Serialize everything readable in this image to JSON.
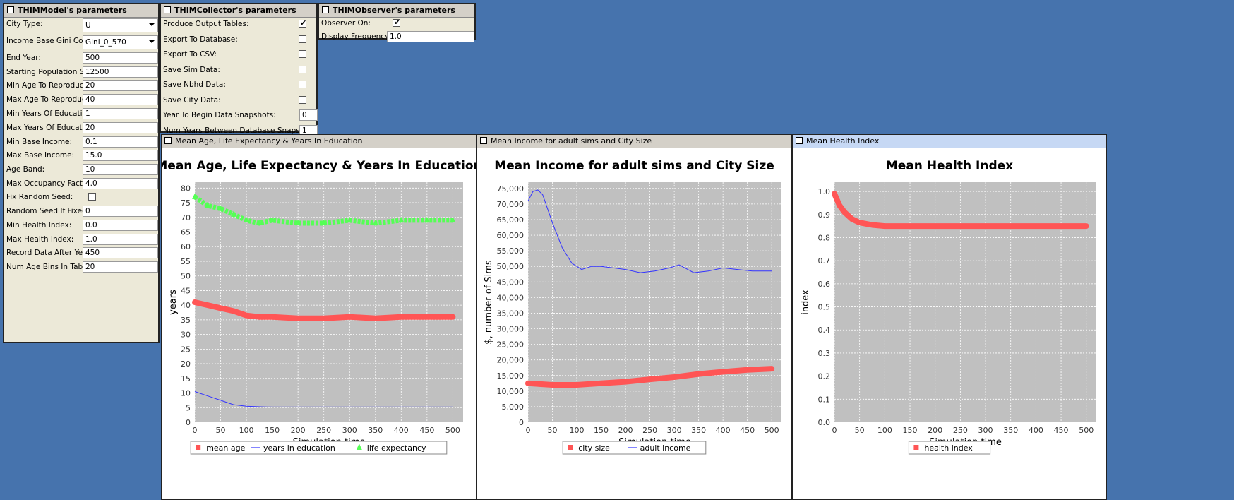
{
  "model_panel": {
    "title": "THIMModel's parameters",
    "rows": [
      {
        "label": "City Type:",
        "kind": "combo",
        "value": "U"
      },
      {
        "label": "Income Base Gini Coeff:",
        "kind": "combo",
        "value": "Gini_0_570"
      },
      {
        "label": "End Year:",
        "kind": "text",
        "value": "500"
      },
      {
        "label": "Starting Population Size:",
        "kind": "text",
        "value": "12500"
      },
      {
        "label": "Min Age To Reproduce:",
        "kind": "text",
        "value": "20"
      },
      {
        "label": "Max Age To Reproduce:",
        "kind": "text",
        "value": "40"
      },
      {
        "label": "Min Years Of Education:",
        "kind": "text",
        "value": "1"
      },
      {
        "label": "Max Years Of Education:",
        "kind": "text",
        "value": "20"
      },
      {
        "label": "Min Base Income:",
        "kind": "text",
        "value": "0.1"
      },
      {
        "label": "Max Base Income:",
        "kind": "text",
        "value": "15.0"
      },
      {
        "label": "Age Band:",
        "kind": "text",
        "value": "10"
      },
      {
        "label": "Max Occupancy Factor:",
        "kind": "text",
        "value": "4.0"
      },
      {
        "label": "Fix Random Seed:",
        "kind": "check",
        "checked": false
      },
      {
        "label": "Random Seed If Fixed:",
        "kind": "text",
        "value": "0"
      },
      {
        "label": "Min Health Index:",
        "kind": "text",
        "value": "0.0"
      },
      {
        "label": "Max Health Index:",
        "kind": "text",
        "value": "1.0"
      },
      {
        "label": "Record Data After Year:",
        "kind": "text",
        "value": "450"
      },
      {
        "label": "Num Age Bins In Tables:",
        "kind": "text",
        "value": "20"
      }
    ]
  },
  "collector_panel": {
    "title": "THIMCollector's parameters",
    "rows": [
      {
        "label": "Produce Output Tables:",
        "kind": "check",
        "checked": true
      },
      {
        "label": "Export To Database:",
        "kind": "check",
        "checked": false
      },
      {
        "label": "Export To CSV:",
        "kind": "check",
        "checked": false
      },
      {
        "label": "Save Sim Data:",
        "kind": "check",
        "checked": false
      },
      {
        "label": "Save Nbhd Data:",
        "kind": "check",
        "checked": false
      },
      {
        "label": "Save City Data:",
        "kind": "check",
        "checked": false
      },
      {
        "label": "Year To Begin Data Snapshots:",
        "kind": "text",
        "value": "0"
      },
      {
        "label": "Num Years Between Database Snapshots:",
        "kind": "text",
        "value": "1"
      }
    ]
  },
  "observer_panel": {
    "title": "THIMObserver's parameters",
    "rows": [
      {
        "label": "Observer On:",
        "kind": "check",
        "checked": true
      },
      {
        "label": "Display Frequency:",
        "kind": "text",
        "value": "1.0"
      }
    ]
  },
  "chart_data": [
    {
      "type": "line",
      "window_title": "Mean Age, Life Expectancy & Years In Education",
      "title": "Mean Age, Life Expectancy & Years In Education",
      "xlabel": "Simulation time",
      "ylabel": "years",
      "xlim": [
        0,
        520
      ],
      "ylim": [
        0,
        82
      ],
      "x_ticks": [
        "0",
        "50",
        "100",
        "150",
        "200",
        "250",
        "300",
        "350",
        "400",
        "450",
        "500"
      ],
      "y_ticks": [
        "0",
        "5",
        "10",
        "15",
        "20",
        "25",
        "30",
        "35",
        "40",
        "45",
        "50",
        "55",
        "60",
        "65",
        "70",
        "75",
        "80"
      ],
      "grid": true,
      "legend_position": "bottom",
      "series": [
        {
          "name": "mean age",
          "color": "#FF5555",
          "style": "thick",
          "x": [
            0,
            25,
            50,
            75,
            100,
            125,
            150,
            200,
            250,
            300,
            350,
            400,
            450,
            500
          ],
          "y": [
            41,
            40,
            39,
            38,
            36.5,
            36,
            36,
            35.5,
            35.5,
            36,
            35.5,
            36,
            36,
            36
          ]
        },
        {
          "name": "years in education",
          "color": "#3333FF",
          "style": "thin",
          "x": [
            0,
            25,
            50,
            75,
            100,
            125,
            150,
            200,
            300,
            400,
            500
          ],
          "y": [
            10.5,
            9,
            7.5,
            6,
            5.5,
            5.3,
            5.2,
            5.2,
            5.2,
            5.2,
            5.2
          ]
        },
        {
          "name": "life expectancy",
          "color": "#55FF55",
          "style": "triangles",
          "x": [
            0,
            25,
            50,
            75,
            100,
            125,
            150,
            200,
            250,
            300,
            350,
            400,
            450,
            500
          ],
          "y": [
            77,
            74,
            73,
            71,
            69,
            68,
            69,
            68,
            68,
            69,
            68,
            69,
            69,
            69
          ]
        }
      ]
    },
    {
      "type": "line",
      "window_title": "Mean Income for adult sims and City Size",
      "title": "Mean Income for adult sims and City Size",
      "xlabel": "Simulation time",
      "ylabel": "$, number of Sims",
      "xlim": [
        0,
        520
      ],
      "ylim": [
        0,
        77000
      ],
      "x_ticks": [
        "0",
        "50",
        "100",
        "150",
        "200",
        "250",
        "300",
        "350",
        "400",
        "450",
        "500"
      ],
      "y_ticks": [
        "0",
        "5,000",
        "10,000",
        "15,000",
        "20,000",
        "25,000",
        "30,000",
        "35,000",
        "40,000",
        "45,000",
        "50,000",
        "55,000",
        "60,000",
        "65,000",
        "70,000",
        "75,000"
      ],
      "grid": true,
      "legend_position": "bottom",
      "series": [
        {
          "name": "city size",
          "color": "#FF5555",
          "style": "thick",
          "x": [
            0,
            50,
            100,
            150,
            200,
            250,
            300,
            350,
            400,
            450,
            500
          ],
          "y": [
            12500,
            12000,
            12000,
            12500,
            13000,
            13800,
            14500,
            15500,
            16200,
            16800,
            17200
          ]
        },
        {
          "name": "adult income",
          "color": "#3333FF",
          "style": "thin",
          "x": [
            0,
            10,
            20,
            30,
            50,
            70,
            90,
            110,
            130,
            150,
            175,
            200,
            230,
            260,
            290,
            310,
            340,
            370,
            400,
            430,
            460,
            490,
            500
          ],
          "y": [
            71000,
            74000,
            74500,
            73000,
            64000,
            56000,
            51000,
            49000,
            50000,
            50000,
            49500,
            49000,
            48000,
            48500,
            49500,
            50500,
            48000,
            48500,
            49500,
            49000,
            48500,
            48500,
            48500
          ]
        }
      ]
    },
    {
      "type": "line",
      "window_title": "Mean Health Index",
      "title": "Mean Health Index",
      "xlabel": "Simulation time",
      "ylabel": "index",
      "xlim": [
        0,
        520
      ],
      "ylim": [
        0,
        1.04
      ],
      "x_ticks": [
        "0",
        "50",
        "100",
        "150",
        "200",
        "250",
        "300",
        "350",
        "400",
        "450",
        "500"
      ],
      "y_ticks": [
        "0.0",
        "0.1",
        "0.2",
        "0.3",
        "0.4",
        "0.5",
        "0.6",
        "0.7",
        "0.8",
        "0.9",
        "1.0"
      ],
      "grid": true,
      "legend_position": "bottom",
      "series": [
        {
          "name": "health index",
          "color": "#FF5555",
          "style": "thick",
          "x": [
            0,
            10,
            20,
            35,
            50,
            75,
            100,
            150,
            200,
            250,
            300,
            350,
            400,
            450,
            500
          ],
          "y": [
            0.99,
            0.94,
            0.91,
            0.88,
            0.865,
            0.855,
            0.85,
            0.85,
            0.85,
            0.85,
            0.85,
            0.85,
            0.85,
            0.85,
            0.85
          ]
        }
      ]
    }
  ]
}
